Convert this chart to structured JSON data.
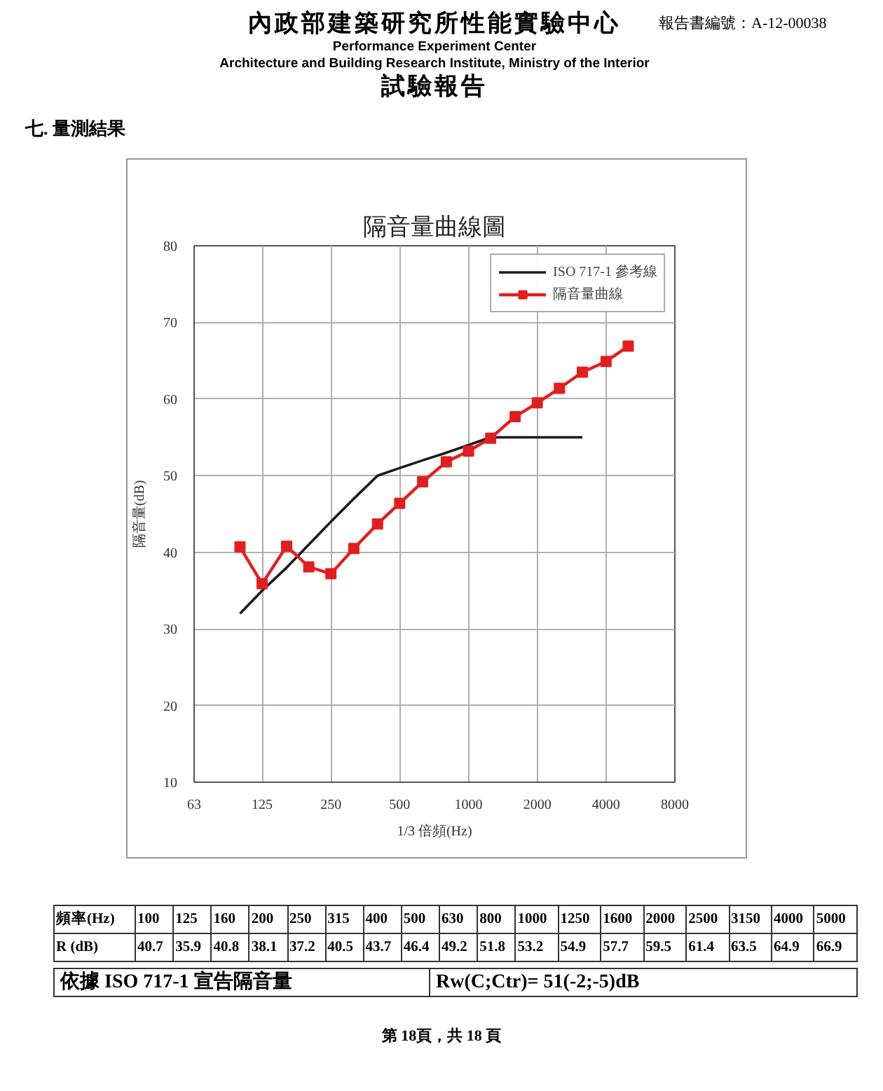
{
  "chart_data": {
    "type": "line",
    "title": "隔音量曲線圖",
    "xlabel": "1/3 倍頻(Hz)",
    "ylabel": "隔音量(dB)",
    "log": "x",
    "xlim": [
      63,
      8000
    ],
    "xticks": [
      63,
      125,
      250,
      500,
      1000,
      2000,
      4000,
      8000
    ],
    "ylim": [
      10,
      80
    ],
    "yticks": [
      10,
      20,
      30,
      40,
      50,
      60,
      70,
      80
    ],
    "grid": true,
    "legend": "top right",
    "line_style": "solid",
    "series": [
      {
        "name": "ISO 717-1 參考線",
        "color": "#1a1a1a",
        "marker": "none",
        "x": [
          100,
          125,
          160,
          200,
          250,
          315,
          400,
          500,
          630,
          800,
          1000,
          1250,
          1600,
          2000,
          2500,
          3150
        ],
        "values": [
          32,
          35,
          38,
          41,
          44,
          47,
          50,
          51,
          52,
          53,
          54,
          55,
          55,
          55,
          55,
          55
        ]
      },
      {
        "name": "隔音量曲線",
        "color": "#e31e1e",
        "marker": "square",
        "x": [
          100,
          125,
          160,
          200,
          250,
          315,
          400,
          500,
          630,
          800,
          1000,
          1250,
          1600,
          2000,
          2500,
          3150,
          4000,
          5000
        ],
        "values": [
          40.7,
          35.9,
          40.8,
          38.1,
          37.2,
          40.5,
          43.7,
          46.4,
          49.2,
          51.8,
          53.2,
          54.9,
          57.7,
          59.5,
          61.4,
          63.5,
          64.9,
          66.9
        ]
      }
    ],
    "annotations": [
      "內政部建築研究所性能實驗中心",
      "Performance Experiment Center",
      "Architecture and Building Research Institute, Ministry of the Interior",
      "試驗報告",
      "報告書編號：A-12-00038",
      "七. 量測結果",
      "頻率(Hz)",
      "100",
      "125",
      "160",
      "200",
      "250",
      "315",
      "400",
      "500",
      "630",
      "800",
      "1000",
      "1250",
      "1600",
      "2000",
      "2500",
      "3150",
      "4000",
      "5000",
      "R (dB)",
      "40.7",
      "35.9",
      "40.8",
      "38.1",
      "37.2",
      "40.5",
      "43.7",
      "46.4",
      "49.2",
      "51.8",
      "53.2",
      "54.9",
      "57.7",
      "59.5",
      "61.4",
      "63.5",
      "64.9",
      "66.9",
      "依據 ISO 717-1 宣告隔音量",
      "Rw(C;Ctr)= 51(-2;-5)dB",
      "第 18頁，共 18 頁"
    ]
  }
}
